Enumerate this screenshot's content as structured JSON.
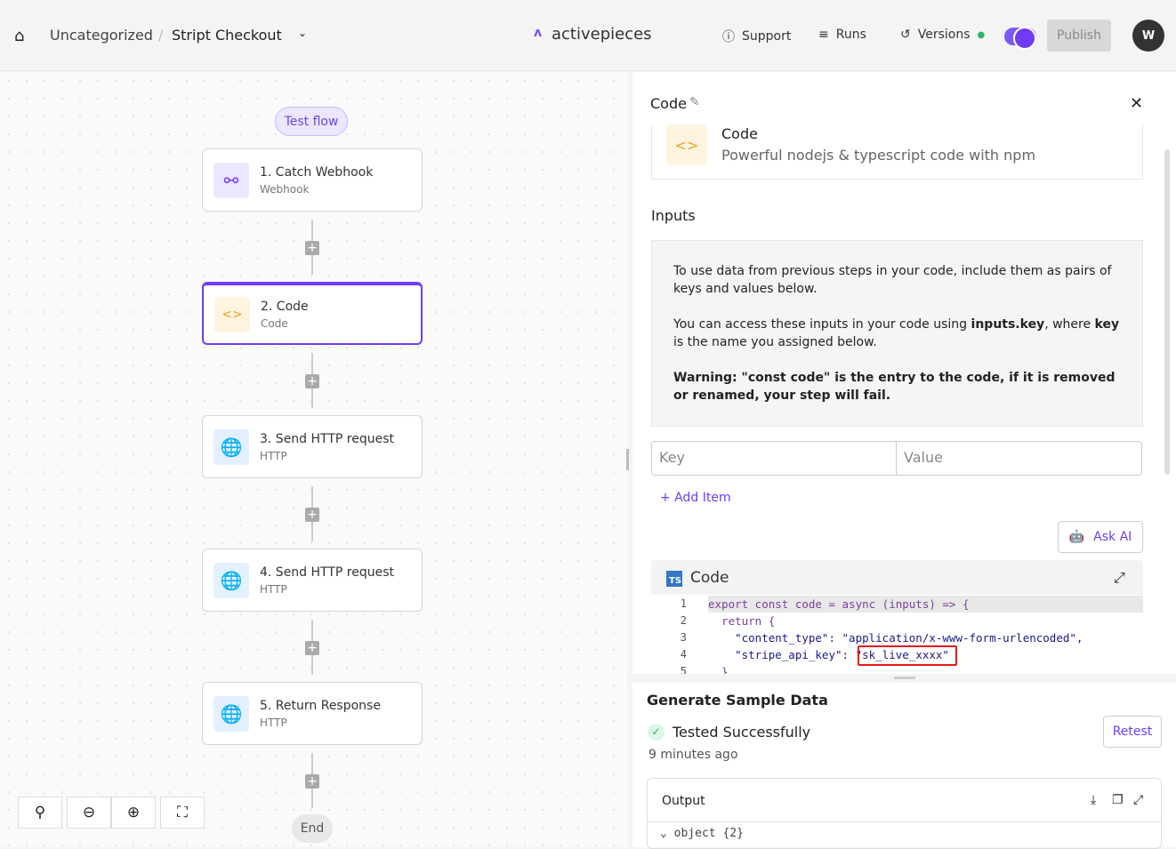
{
  "header": {
    "breadcrumb_folder": "Uncategorized",
    "breadcrumb_sep": "/",
    "flow_name": "Stript Checkout",
    "logo": "activepieces",
    "support": "Support",
    "runs": "Runs",
    "versions": "Versions",
    "publish": "Publish",
    "avatar": "W",
    "toggle_on": true,
    "accent": "#6e3df5"
  },
  "canvas": {
    "test_flow": "Test flow",
    "end": "End",
    "steps": [
      {
        "title": "1. Catch Webhook",
        "sub": "Webhook",
        "icon": "webhook-icon"
      },
      {
        "title": "2. Code",
        "sub": "Code",
        "icon": "code-icon"
      },
      {
        "title": "3. Send HTTP request",
        "sub": "HTTP",
        "icon": "globe-icon"
      },
      {
        "title": "4. Send HTTP request",
        "sub": "HTTP",
        "icon": "globe-icon"
      },
      {
        "title": "5. Return Response",
        "sub": "HTTP",
        "icon": "globe-icon"
      }
    ],
    "add": "+"
  },
  "panel": {
    "title": "Code",
    "piece_name": "Code",
    "piece_desc": "Powerful nodejs & typescript code with npm",
    "inputs_label": "Inputs",
    "info1": "To use data from previous steps in your code, include them as pairs of keys and values below.",
    "info2a": "You can access these inputs in your code using ",
    "info2b": "inputs.key",
    "info2c": ", where ",
    "info2d": "key",
    "info2e": " is the name you assigned below.",
    "info3a": "Warning: ",
    "info3b": "\"const code\" is the entry to the code, if it is removed or renamed, your step will fail.",
    "key_ph": "Key",
    "value_ph": "Value",
    "add_item": "+ Add Item",
    "ask_ai": "Ask AI",
    "code_title": "Code",
    "ts_badge": "TS",
    "lines": [
      "export const code = async (inputs) => {",
      "  return {",
      "    \"content_type\": \"application/x-www-form-urlencoded\",",
      "    \"stripe_api_key\": \"sk_live_xxxx\"",
      "  }"
    ],
    "line_numbers": [
      "1",
      "2",
      "3",
      "4",
      "5"
    ]
  },
  "sample": {
    "title": "Generate Sample Data",
    "status": "Tested Successfully",
    "time": "9 minutes ago",
    "retest": "Retest",
    "output": "Output",
    "object": "object",
    "object_count": "{2}"
  }
}
